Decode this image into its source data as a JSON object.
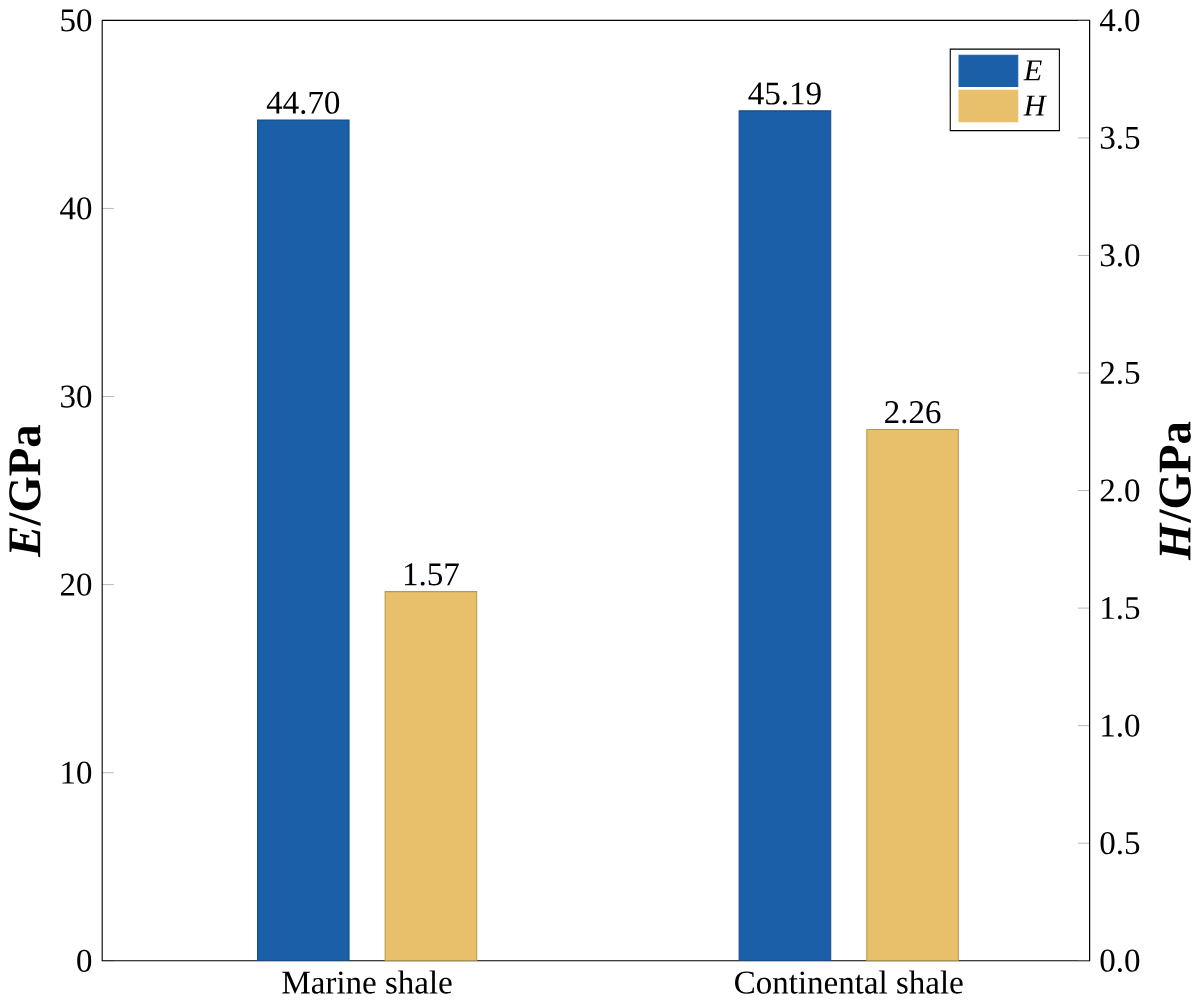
{
  "chart_data": {
    "type": "bar",
    "categories": [
      "Marine shale",
      "Continental shale"
    ],
    "series": [
      {
        "name": "E",
        "color": "#1a5fa8",
        "values": [
          44.7,
          45.19
        ],
        "value_labels": [
          "44.70",
          "45.19"
        ]
      },
      {
        "name": "H",
        "color": "#e8bf6a",
        "values": [
          1.57,
          2.26
        ],
        "value_labels": [
          "1.57",
          "2.26"
        ],
        "axis": "y2"
      }
    ],
    "ylabel": "*E*/GPa",
    "y2label": "*H*/GPa",
    "ylim": [
      0,
      50
    ],
    "yticks": [
      0,
      10,
      20,
      30,
      40,
      50
    ],
    "y2lim": [
      0,
      4
    ],
    "y2ticks": [
      {
        "value": 0,
        "label": "0.0"
      },
      {
        "value": 0.5,
        "label": "0.5"
      },
      {
        "value": 1,
        "label": "1.0"
      },
      {
        "value": 1.5,
        "label": "1.5"
      },
      {
        "value": 2,
        "label": "2.0"
      },
      {
        "value": 2.5,
        "label": "2.5"
      },
      {
        "value": 3,
        "label": "3.0"
      },
      {
        "value": 3.5,
        "label": "3.5"
      },
      {
        "value": 4,
        "label": "4.0"
      }
    ],
    "legend": "top right",
    "grid": false
  }
}
